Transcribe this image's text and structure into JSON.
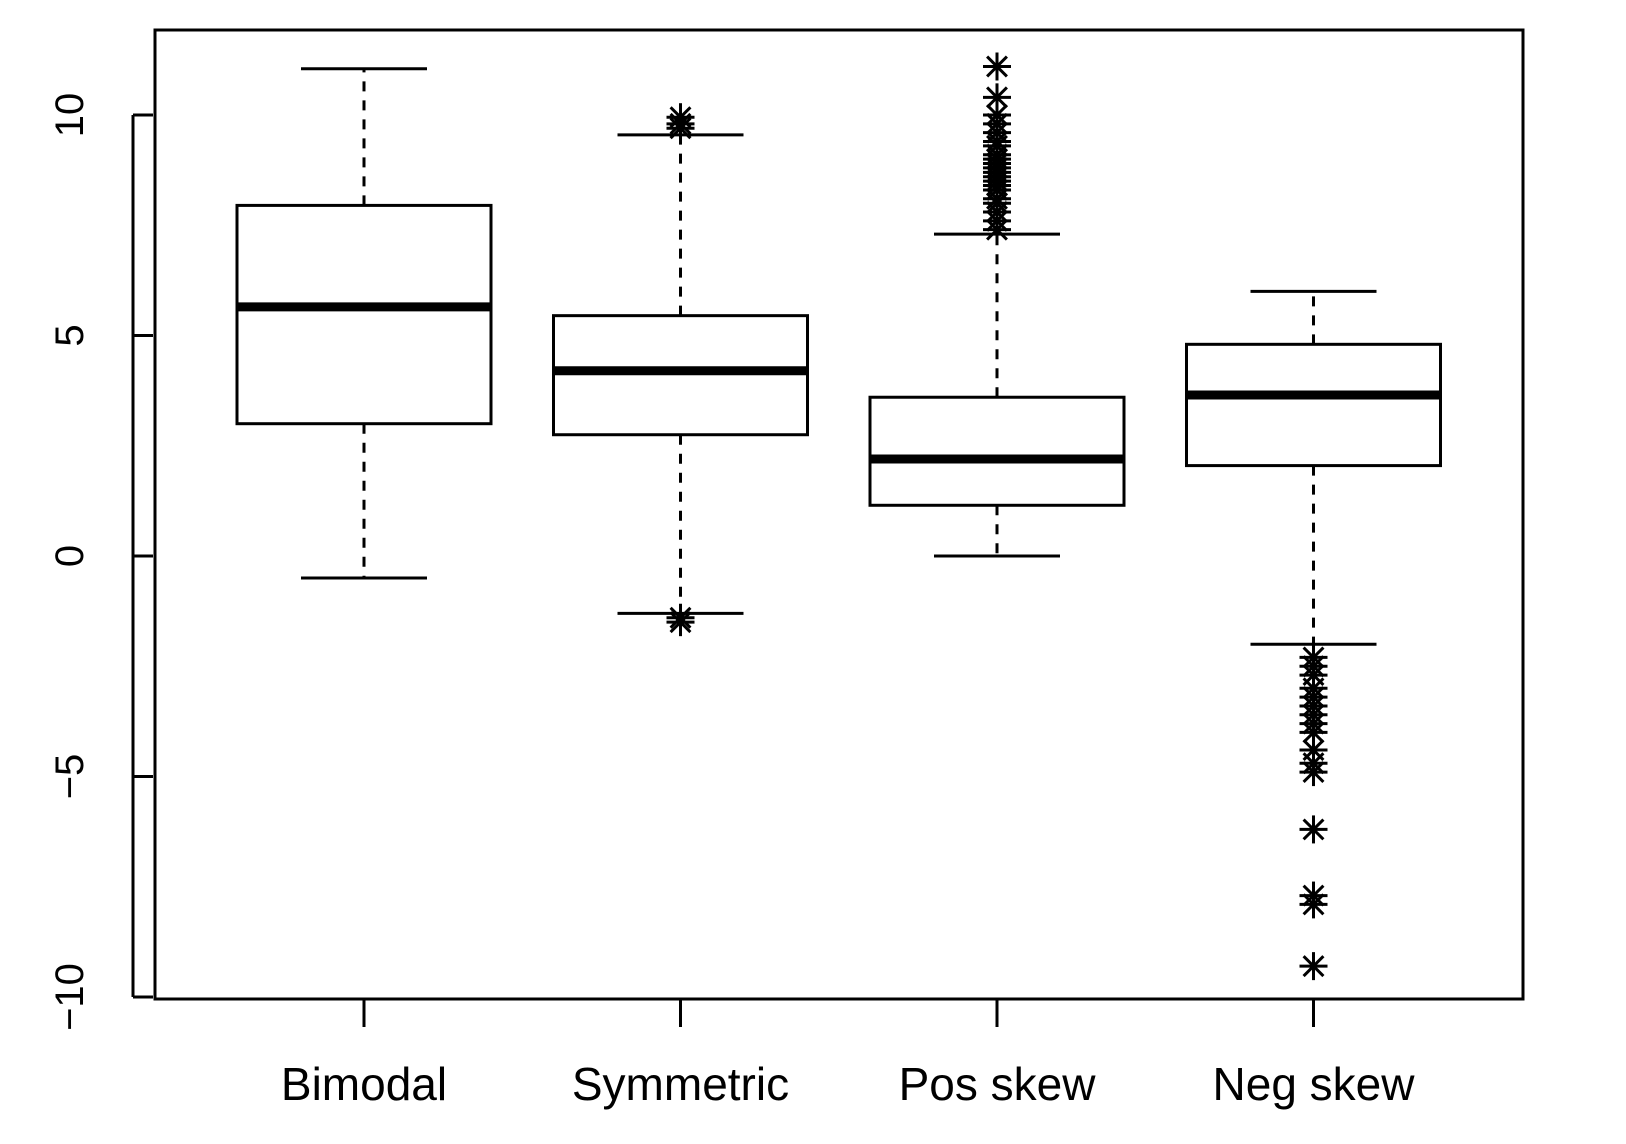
{
  "chart_data": {
    "type": "boxplot",
    "title": "",
    "xlabel": "",
    "ylabel": "",
    "ylim": [
      -10,
      11.9
    ],
    "yticks": [
      -10,
      -5,
      0,
      5,
      10
    ],
    "grid": false,
    "legend": "none",
    "categories": [
      "Bimodal",
      "Symmetric",
      "Pos skew",
      "Neg skew"
    ],
    "boxes": [
      {
        "name": "Bimodal",
        "whisker_low": -0.5,
        "q1": 3.0,
        "median": 5.65,
        "q3": 7.95,
        "whisker_high": 11.05,
        "outliers": []
      },
      {
        "name": "Symmetric",
        "whisker_low": -1.3,
        "q1": 2.75,
        "median": 4.2,
        "q3": 5.45,
        "whisker_high": 9.55,
        "outliers": [
          -1.4,
          -1.5,
          9.7,
          9.8,
          9.95
        ]
      },
      {
        "name": "Pos skew",
        "whisker_low": 0.0,
        "q1": 1.15,
        "median": 2.2,
        "q3": 3.6,
        "whisker_high": 7.3,
        "outliers": [
          7.4,
          7.6,
          7.8,
          8.0,
          8.1,
          8.3,
          8.4,
          8.5,
          8.6,
          8.7,
          8.8,
          8.9,
          9.0,
          9.1,
          9.3,
          9.4,
          9.6,
          9.8,
          10.0,
          10.4,
          11.1
        ]
      },
      {
        "name": "Neg skew",
        "whisker_low": -2.0,
        "q1": 2.05,
        "median": 3.65,
        "q3": 4.8,
        "whisker_high": 6.0,
        "outliers": [
          -2.3,
          -2.5,
          -2.7,
          -3.0,
          -3.2,
          -3.4,
          -3.6,
          -3.8,
          -4.0,
          -4.4,
          -4.7,
          -4.9,
          -6.2,
          -7.7,
          -7.9,
          -9.3
        ]
      }
    ]
  }
}
